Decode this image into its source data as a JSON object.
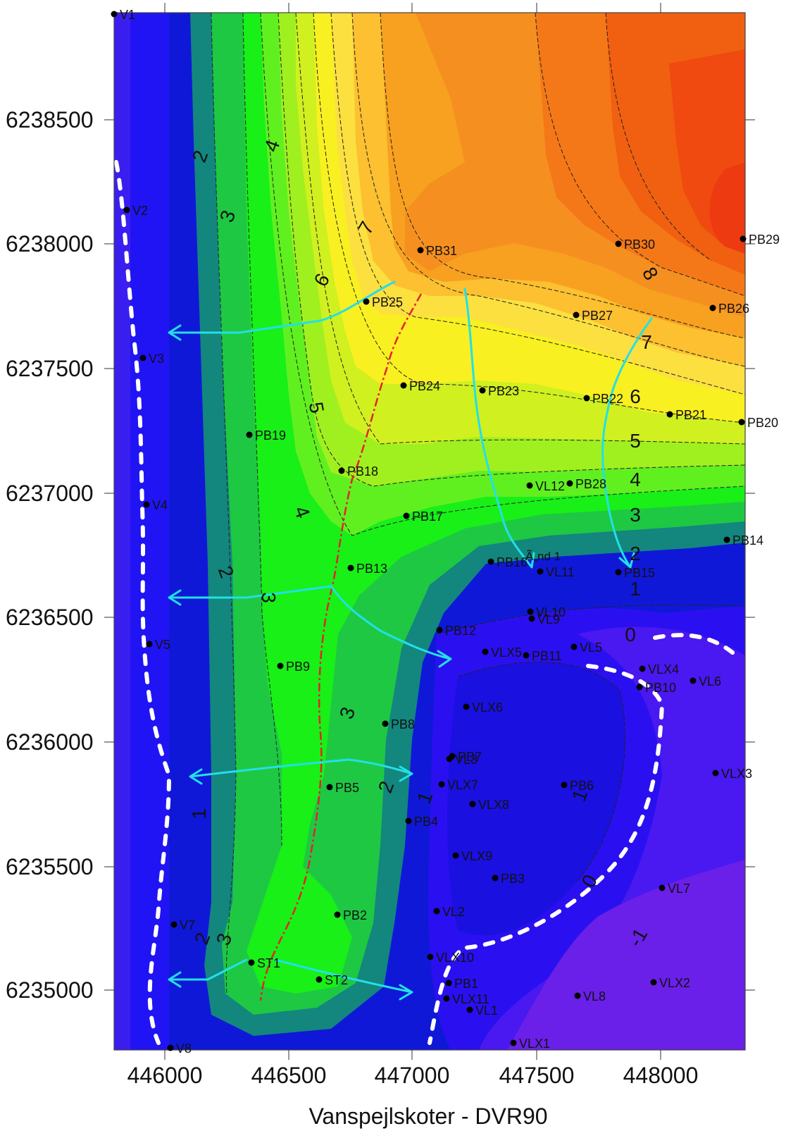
{
  "axes": {
    "y_ticks": [
      "6238500",
      "6238000",
      "6237500",
      "6237000",
      "6236500",
      "6236000",
      "6235500",
      "6235000"
    ],
    "x_ticks": [
      "446000",
      "446500",
      "447000",
      "447500",
      "448000"
    ],
    "x_title": "Vanspejlskoter - DVR90"
  },
  "contour_labels": [
    "2",
    "4",
    "3",
    "7",
    "6",
    "5",
    "4",
    "2",
    "3",
    "3",
    "2",
    "1",
    "2",
    "3",
    "1",
    "1",
    "0",
    "0",
    "8",
    "7",
    "6",
    "5",
    "4",
    "3",
    "2",
    "1",
    "-1"
  ],
  "wells": [
    {
      "name": "V1"
    },
    {
      "name": "V2"
    },
    {
      "name": "V3"
    },
    {
      "name": "V4"
    },
    {
      "name": "V5"
    },
    {
      "name": "V7"
    },
    {
      "name": "V8"
    },
    {
      "name": "PB31"
    },
    {
      "name": "PB30"
    },
    {
      "name": "PB29"
    },
    {
      "name": "PB25"
    },
    {
      "name": "PB26"
    },
    {
      "name": "PB27"
    },
    {
      "name": "PB24"
    },
    {
      "name": "PB23"
    },
    {
      "name": "PB22"
    },
    {
      "name": "PB21"
    },
    {
      "name": "PB20"
    },
    {
      "name": "PB19"
    },
    {
      "name": "PB18"
    },
    {
      "name": "VL12"
    },
    {
      "name": "PB28"
    },
    {
      "name": "PB17"
    },
    {
      "name": "PB14"
    },
    {
      "name": "PB13"
    },
    {
      "name": "PB16"
    },
    {
      "name": "VL11"
    },
    {
      "name": "PB15"
    },
    {
      "name": "VL10"
    },
    {
      "name": "VL9"
    },
    {
      "name": "PB12"
    },
    {
      "name": "VLX5"
    },
    {
      "name": "PB11"
    },
    {
      "name": "VL5"
    },
    {
      "name": "PB9"
    },
    {
      "name": "VLX4"
    },
    {
      "name": "VL6"
    },
    {
      "name": "PB10"
    },
    {
      "name": "VLX6"
    },
    {
      "name": "PB8"
    },
    {
      "name": "PB7"
    },
    {
      "name": "VL3"
    },
    {
      "name": "VLX3"
    },
    {
      "name": "VLX7"
    },
    {
      "name": "PB6"
    },
    {
      "name": "PB5"
    },
    {
      "name": "VLX8"
    },
    {
      "name": "PB4"
    },
    {
      "name": "VLX9"
    },
    {
      "name": "PB3"
    },
    {
      "name": "VL7"
    },
    {
      "name": "VL2"
    },
    {
      "name": "PB2"
    },
    {
      "name": "VLX10"
    },
    {
      "name": "ST1"
    },
    {
      "name": "ST2"
    },
    {
      "name": "PB1"
    },
    {
      "name": "VLX2"
    },
    {
      "name": "VLX11"
    },
    {
      "name": "VL8"
    },
    {
      "name": "VL1"
    },
    {
      "name": "VLX1"
    }
  ],
  "annotations": {
    "strand_label": "Ã„nd 1"
  },
  "colors": {
    "flow_arrow": "#22e0e8",
    "divide_line": "#e8202a",
    "zero_line": "#ffffff"
  }
}
